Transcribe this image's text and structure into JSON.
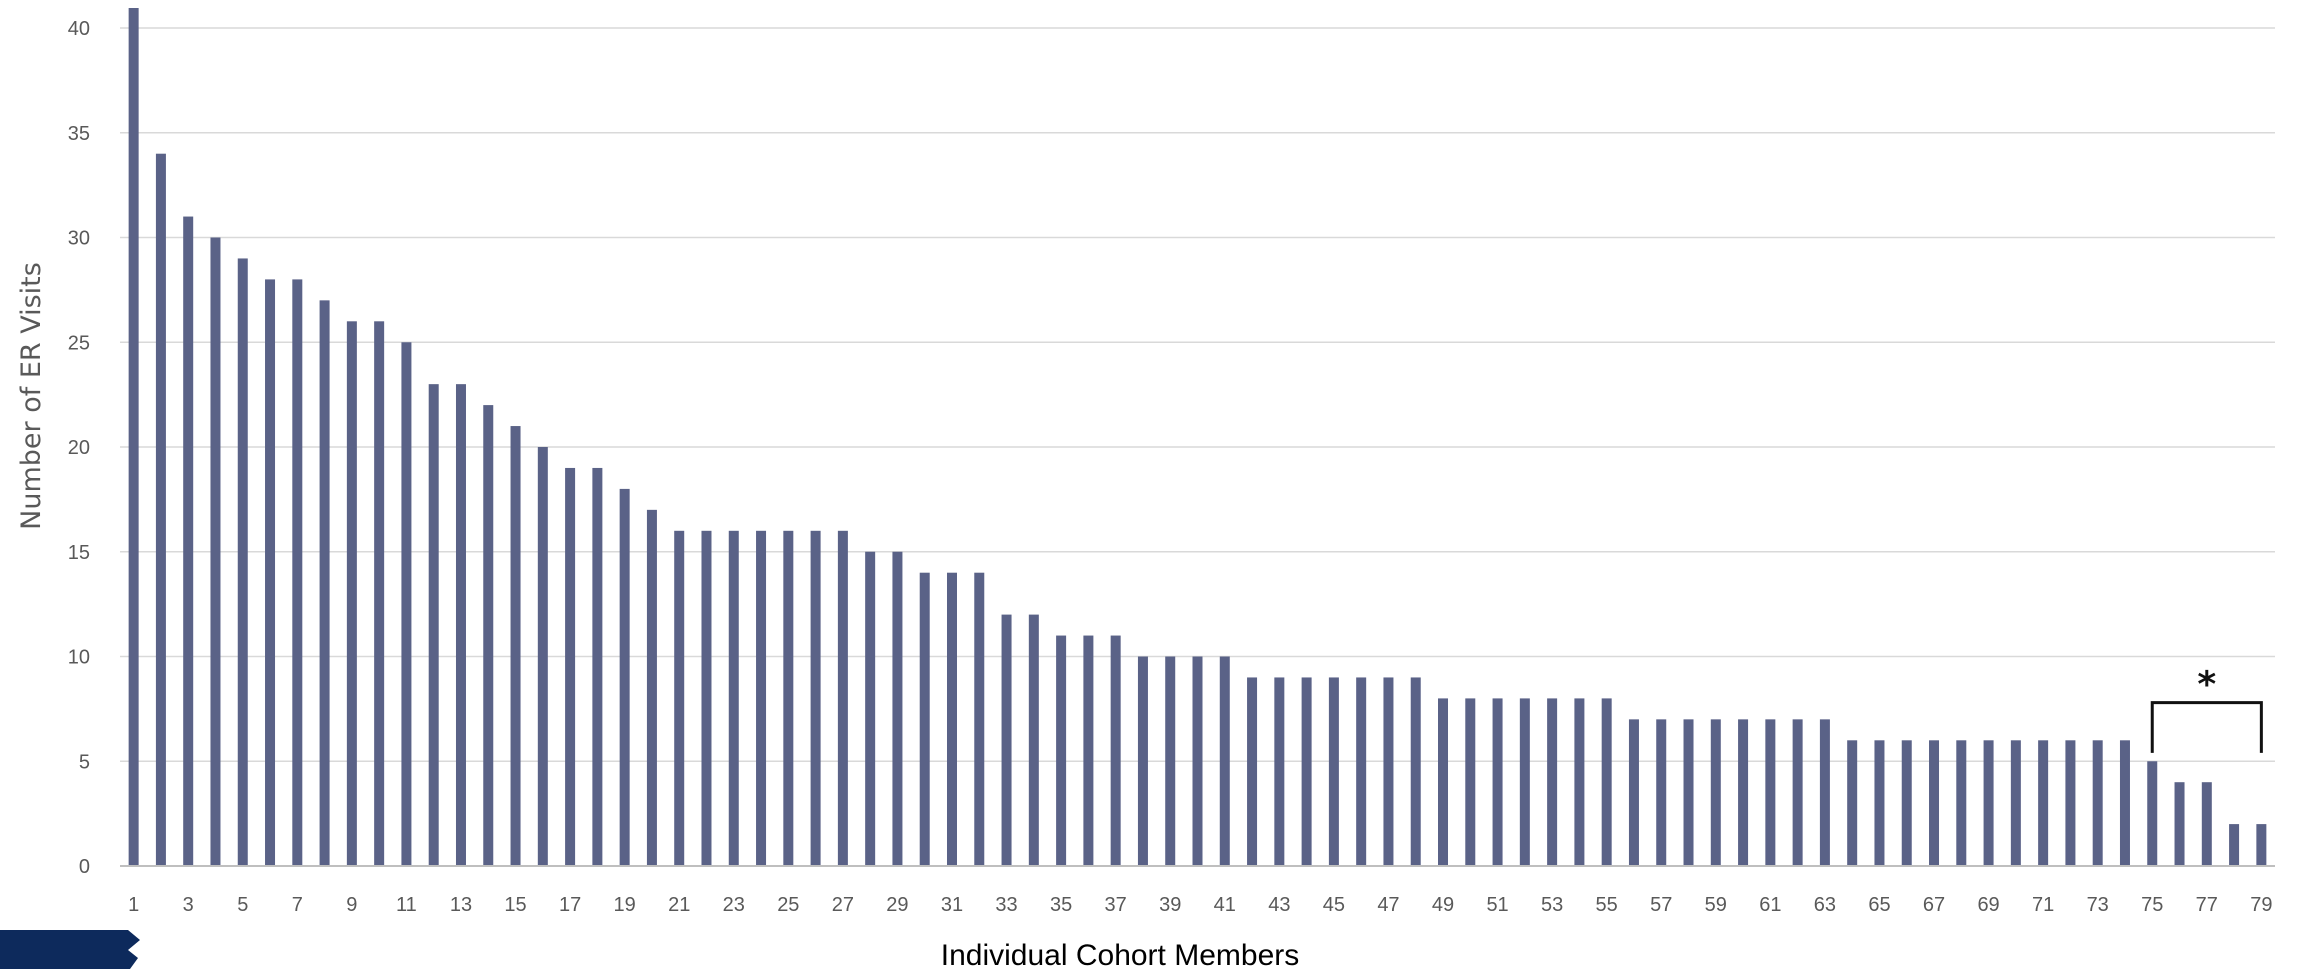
{
  "chart_data": {
    "type": "bar",
    "xlabel": "Individual Cohort Members",
    "ylabel": "Number of ER Visits",
    "categories": [
      "1",
      "2",
      "3",
      "4",
      "5",
      "6",
      "7",
      "8",
      "9",
      "10",
      "11",
      "12",
      "13",
      "14",
      "15",
      "16",
      "17",
      "18",
      "19",
      "20",
      "21",
      "22",
      "23",
      "24",
      "25",
      "26",
      "27",
      "28",
      "29",
      "30",
      "31",
      "32",
      "33",
      "34",
      "35",
      "36",
      "37",
      "38",
      "39",
      "40",
      "41",
      "42",
      "43",
      "44",
      "45",
      "46",
      "47",
      "48",
      "49",
      "50",
      "51",
      "52",
      "53",
      "54",
      "55",
      "56",
      "57",
      "58",
      "59",
      "60",
      "61",
      "62",
      "63",
      "64",
      "65",
      "66",
      "67",
      "68",
      "69",
      "70",
      "71",
      "72",
      "73",
      "74",
      "75",
      "76",
      "77",
      "78",
      "79"
    ],
    "x_tick_labels": [
      "1",
      "3",
      "5",
      "7",
      "9",
      "11",
      "13",
      "15",
      "17",
      "19",
      "21",
      "23",
      "25",
      "27",
      "29",
      "31",
      "33",
      "35",
      "37",
      "39",
      "41",
      "43",
      "45",
      "47",
      "49",
      "51",
      "53",
      "55",
      "57",
      "59",
      "61",
      "63",
      "65",
      "67",
      "69",
      "71",
      "73",
      "75",
      "77",
      "79"
    ],
    "values": [
      41,
      34,
      31,
      30,
      29,
      28,
      28,
      27,
      26,
      26,
      25,
      23,
      23,
      22,
      21,
      20,
      19,
      19,
      18,
      17,
      16,
      16,
      16,
      16,
      16,
      16,
      16,
      15,
      15,
      14,
      14,
      14,
      12,
      12,
      11,
      11,
      11,
      10,
      10,
      10,
      10,
      9,
      9,
      9,
      9,
      9,
      9,
      9,
      8,
      8,
      8,
      8,
      8,
      8,
      8,
      7,
      7,
      7,
      7,
      7,
      7,
      7,
      7,
      6,
      6,
      6,
      6,
      6,
      6,
      6,
      6,
      6,
      6,
      6,
      5,
      4,
      4,
      2,
      2
    ],
    "ylim": [
      0,
      40
    ],
    "y_ticks": [
      0,
      5,
      10,
      15,
      20,
      25,
      30,
      35,
      40
    ],
    "grid": true,
    "legend": "none",
    "annotation": {
      "text": "*",
      "bracket_from_category": "75",
      "bracket_to_category": "79"
    },
    "colors": {
      "bar": "#5a6287",
      "grid": "#d9d9d9",
      "axis": "#bfbfbf",
      "tick_text": "#595959",
      "bracket": "#111111"
    }
  },
  "logo": {
    "color": "#0d2a5c"
  }
}
